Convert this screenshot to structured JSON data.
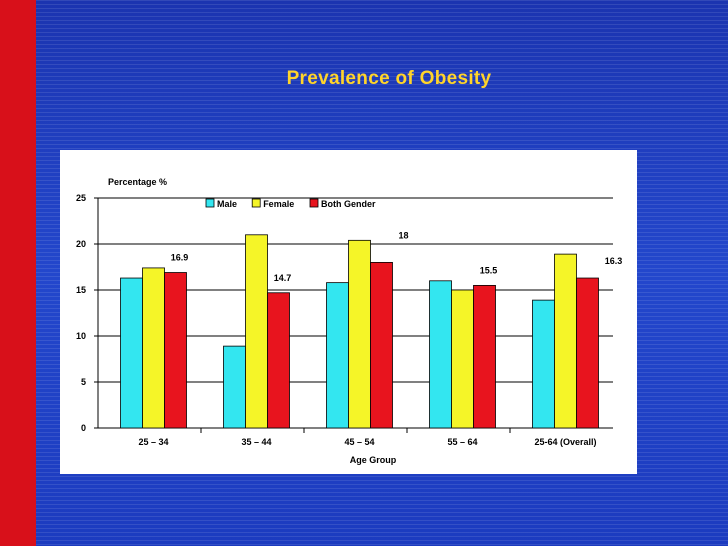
{
  "slide": {
    "title": "Prevalence of Obesity"
  },
  "colors": {
    "male": "#33e6f0",
    "female": "#f5f528",
    "both": "#e8141e"
  },
  "chart_data": {
    "type": "bar",
    "title": "",
    "ylabel": "Percentage %",
    "xlabel": "Age Group",
    "ylim": [
      0,
      25
    ],
    "yticks": [
      0,
      5,
      10,
      15,
      20,
      25
    ],
    "grid": true,
    "categories": [
      "25 – 34",
      "35 – 44",
      "45 – 54",
      "55 – 64",
      "25-64 (Overall)"
    ],
    "series": [
      {
        "name": "Male",
        "values": [
          16.3,
          8.9,
          15.8,
          16.0,
          13.9
        ]
      },
      {
        "name": "Female",
        "values": [
          17.4,
          21.0,
          20.4,
          15.0,
          18.9
        ]
      },
      {
        "name": "Both Gender",
        "values": [
          16.9,
          14.7,
          18.0,
          15.5,
          16.3
        ]
      }
    ],
    "data_labels": [
      "16.9",
      "14.7",
      "18",
      "15.5",
      "16.3"
    ],
    "legend": "top-center"
  }
}
